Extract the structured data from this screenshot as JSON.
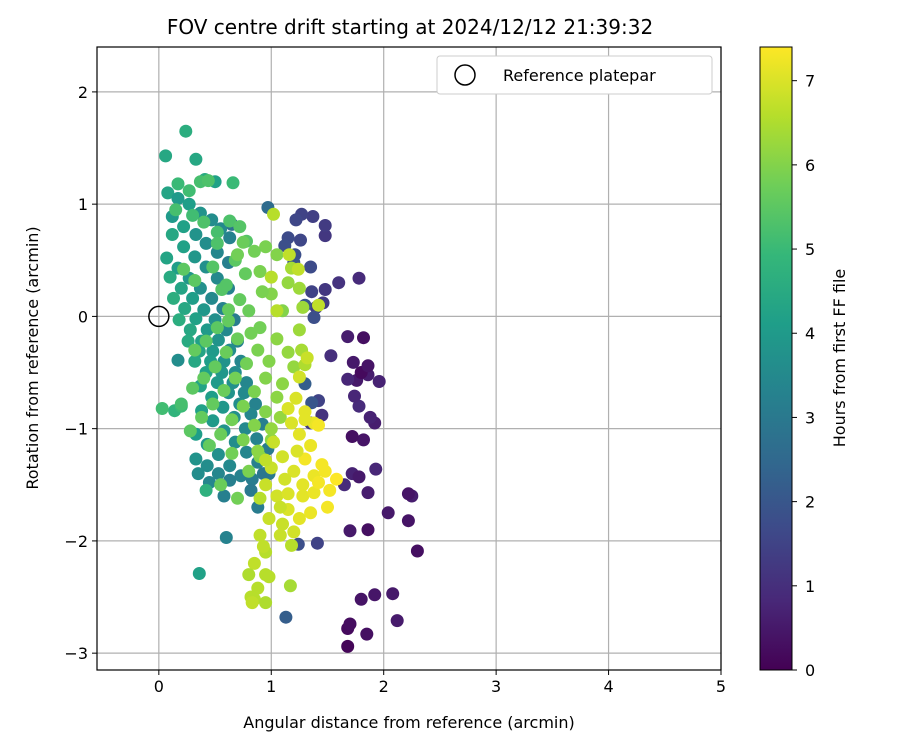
{
  "chart_data": {
    "type": "scatter",
    "title": "FOV centre drift starting at 2024/12/12 21:39:32",
    "xlabel": "Angular distance from reference (arcmin)",
    "ylabel": "Rotation from reference (arcmin)",
    "xlim": [
      -0.55,
      5.0
    ],
    "ylim": [
      -3.15,
      2.4
    ],
    "xticks": [
      0,
      1,
      2,
      3,
      4,
      5
    ],
    "yticks": [
      -3,
      -2,
      -1,
      0,
      1,
      2
    ],
    "grid": true,
    "legend": {
      "label": "Reference platepar",
      "placement": "top-right"
    },
    "reference_point": {
      "x": 0,
      "y": 0
    },
    "colorbar": {
      "label": "Hours from first FF file",
      "range": [
        0,
        7.4
      ],
      "ticks": [
        0,
        1,
        2,
        3,
        4,
        5,
        6,
        7
      ],
      "colormap": "viridis",
      "colors": [
        "#440154",
        "#482878",
        "#3e4989",
        "#31688e",
        "#26828e",
        "#1f9e89",
        "#35b779",
        "#6ece58",
        "#b5de2b",
        "#fde725"
      ]
    },
    "points": [
      [
        1.68,
        -2.94,
        0.1
      ],
      [
        1.68,
        -2.78,
        0.2
      ],
      [
        1.7,
        -2.74,
        0.25
      ],
      [
        1.85,
        -2.83,
        0.3
      ],
      [
        1.8,
        -2.52,
        0.4
      ],
      [
        1.92,
        -2.48,
        0.45
      ],
      [
        2.08,
        -2.47,
        0.5
      ],
      [
        2.12,
        -2.71,
        0.55
      ],
      [
        2.3,
        -2.09,
        0.3
      ],
      [
        2.22,
        -1.82,
        0.4
      ],
      [
        2.04,
        -1.75,
        0.5
      ],
      [
        2.25,
        -1.6,
        0.6
      ],
      [
        2.22,
        -1.58,
        0.4
      ],
      [
        1.86,
        -1.9,
        0.3
      ],
      [
        1.7,
        -1.91,
        0.5
      ],
      [
        1.86,
        -1.57,
        0.6
      ],
      [
        1.93,
        -1.36,
        0.8
      ],
      [
        1.65,
        -1.5,
        0.9
      ],
      [
        1.72,
        -1.4,
        0.7
      ],
      [
        1.78,
        -1.43,
        0.5
      ],
      [
        1.82,
        -1.1,
        0.4
      ],
      [
        1.72,
        -1.07,
        0.3
      ],
      [
        1.92,
        -0.95,
        0.6
      ],
      [
        1.88,
        -0.9,
        0.7
      ],
      [
        1.78,
        -0.8,
        0.9
      ],
      [
        1.74,
        -0.71,
        0.8
      ],
      [
        1.76,
        -0.57,
        0.5
      ],
      [
        1.86,
        -0.52,
        0.6
      ],
      [
        1.96,
        -0.58,
        0.7
      ],
      [
        1.8,
        -0.5,
        0.2
      ],
      [
        1.73,
        -0.41,
        0.5
      ],
      [
        1.86,
        -0.44,
        0.4
      ],
      [
        1.82,
        -0.19,
        0.3
      ],
      [
        1.68,
        -0.18,
        0.6
      ],
      [
        1.68,
        -0.56,
        0.8
      ],
      [
        1.53,
        -0.35,
        1.0
      ],
      [
        1.78,
        0.34,
        0.9
      ],
      [
        1.6,
        0.3,
        1.1
      ],
      [
        1.48,
        0.24,
        1.2
      ],
      [
        1.46,
        0.12,
        1.3
      ],
      [
        1.4,
        0.08,
        1.4
      ],
      [
        1.36,
        0.22,
        1.5
      ],
      [
        1.48,
        0.72,
        1.2
      ],
      [
        1.48,
        0.81,
        1.3
      ],
      [
        1.37,
        0.89,
        1.4
      ],
      [
        1.27,
        0.91,
        1.5
      ],
      [
        1.22,
        0.86,
        1.6
      ],
      [
        1.26,
        0.68,
        1.6
      ],
      [
        1.15,
        0.7,
        1.7
      ],
      [
        1.12,
        0.63,
        1.8
      ],
      [
        1.21,
        0.55,
        1.8
      ],
      [
        1.2,
        0.48,
        1.9
      ],
      [
        1.35,
        0.44,
        1.7
      ],
      [
        1.24,
        -2.03,
        1.8
      ],
      [
        1.41,
        -2.02,
        1.5
      ],
      [
        1.42,
        -0.75,
        1.5
      ],
      [
        1.45,
        -0.88,
        1.1
      ],
      [
        1.35,
        -0.95,
        1.3
      ],
      [
        1.13,
        -2.68,
        2.2
      ],
      [
        0.97,
        0.97,
        2.6
      ],
      [
        0.65,
        0.82,
        2.8
      ],
      [
        1.3,
        0.1,
        2.0
      ],
      [
        1.38,
        -0.01,
        1.8
      ],
      [
        1.3,
        -0.6,
        2.2
      ],
      [
        1.36,
        -0.77,
        2.0
      ],
      [
        0.06,
        1.43,
        4.4
      ],
      [
        0.24,
        1.65,
        4.6
      ],
      [
        0.33,
        1.4,
        4.4
      ],
      [
        0.41,
        1.22,
        4.5
      ],
      [
        0.5,
        1.2,
        4.2
      ],
      [
        0.08,
        1.1,
        4.3
      ],
      [
        0.17,
        1.05,
        4.0
      ],
      [
        0.27,
        1.0,
        4.1
      ],
      [
        0.37,
        0.92,
        3.8
      ],
      [
        0.47,
        0.86,
        3.6
      ],
      [
        0.55,
        0.78,
        3.5
      ],
      [
        0.63,
        0.7,
        3.3
      ],
      [
        0.12,
        0.89,
        4.0
      ],
      [
        0.22,
        0.8,
        4.2
      ],
      [
        0.33,
        0.73,
        3.8
      ],
      [
        0.42,
        0.65,
        3.6
      ],
      [
        0.52,
        0.57,
        3.4
      ],
      [
        0.62,
        0.48,
        3.2
      ],
      [
        0.12,
        0.73,
        4.4
      ],
      [
        0.22,
        0.62,
        4.2
      ],
      [
        0.32,
        0.53,
        3.9
      ],
      [
        0.42,
        0.44,
        3.7
      ],
      [
        0.52,
        0.34,
        3.5
      ],
      [
        0.62,
        0.25,
        3.3
      ],
      [
        0.07,
        0.52,
        4.3
      ],
      [
        0.17,
        0.43,
        4.1
      ],
      [
        0.27,
        0.34,
        3.9
      ],
      [
        0.37,
        0.25,
        3.7
      ],
      [
        0.47,
        0.16,
        3.5
      ],
      [
        0.57,
        0.07,
        3.3
      ],
      [
        0.67,
        -0.03,
        3.1
      ],
      [
        0.1,
        0.35,
        4.5
      ],
      [
        0.2,
        0.25,
        4.3
      ],
      [
        0.3,
        0.16,
        4.1
      ],
      [
        0.4,
        0.06,
        3.9
      ],
      [
        0.5,
        -0.03,
        3.7
      ],
      [
        0.6,
        -0.12,
        3.5
      ],
      [
        0.7,
        -0.22,
        3.3
      ],
      [
        0.13,
        0.16,
        4.6
      ],
      [
        0.23,
        0.07,
        4.4
      ],
      [
        0.33,
        -0.02,
        4.2
      ],
      [
        0.43,
        -0.12,
        4.0
      ],
      [
        0.53,
        -0.21,
        3.8
      ],
      [
        0.63,
        -0.3,
        3.6
      ],
      [
        0.73,
        -0.4,
        3.4
      ],
      [
        0.18,
        -0.03,
        4.6
      ],
      [
        0.28,
        -0.12,
        4.4
      ],
      [
        0.38,
        -0.22,
        4.2
      ],
      [
        0.48,
        -0.31,
        4.0
      ],
      [
        0.58,
        -0.4,
        3.8
      ],
      [
        0.68,
        -0.5,
        3.6
      ],
      [
        0.78,
        -0.59,
        3.4
      ],
      [
        0.26,
        -0.22,
        4.5
      ],
      [
        0.36,
        -0.31,
        4.3
      ],
      [
        0.46,
        -0.4,
        4.1
      ],
      [
        0.56,
        -0.5,
        3.9
      ],
      [
        0.66,
        -0.59,
        3.7
      ],
      [
        0.76,
        -0.68,
        3.5
      ],
      [
        0.86,
        -0.78,
        3.3
      ],
      [
        0.32,
        -0.4,
        4.4
      ],
      [
        0.42,
        -0.5,
        4.2
      ],
      [
        0.52,
        -0.59,
        4.0
      ],
      [
        0.62,
        -0.68,
        3.8
      ],
      [
        0.72,
        -0.78,
        3.6
      ],
      [
        0.82,
        -0.87,
        3.4
      ],
      [
        0.92,
        -0.96,
        3.2
      ],
      [
        0.37,
        -0.62,
        4.3
      ],
      [
        0.47,
        -0.72,
        4.1
      ],
      [
        0.57,
        -0.81,
        3.9
      ],
      [
        0.67,
        -0.9,
        3.7
      ],
      [
        0.77,
        -1.0,
        3.5
      ],
      [
        0.87,
        -1.09,
        3.3
      ],
      [
        0.97,
        -1.18,
        3.1
      ],
      [
        0.38,
        -0.84,
        4.2
      ],
      [
        0.48,
        -0.93,
        4.0
      ],
      [
        0.58,
        -1.02,
        3.8
      ],
      [
        0.68,
        -1.12,
        3.6
      ],
      [
        0.78,
        -1.21,
        3.4
      ],
      [
        0.88,
        -1.3,
        3.2
      ],
      [
        0.98,
        -1.4,
        3.0
      ],
      [
        0.33,
        -1.05,
        4.1
      ],
      [
        0.43,
        -1.14,
        3.9
      ],
      [
        0.53,
        -1.23,
        3.7
      ],
      [
        0.63,
        -1.33,
        3.5
      ],
      [
        0.73,
        -1.42,
        3.3
      ],
      [
        0.83,
        -1.45,
        3.1
      ],
      [
        0.93,
        -1.4,
        2.9
      ],
      [
        0.33,
        -1.27,
        3.8
      ],
      [
        0.43,
        -1.33,
        3.6
      ],
      [
        0.53,
        -1.4,
        3.4
      ],
      [
        0.63,
        -1.46,
        3.2
      ],
      [
        0.35,
        -1.4,
        3.6
      ],
      [
        0.45,
        -1.48,
        3.4
      ],
      [
        0.58,
        -1.6,
        3.2
      ],
      [
        0.82,
        -1.55,
        3.0
      ],
      [
        0.88,
        -1.7,
        3.1
      ],
      [
        0.6,
        -1.97,
        3.3
      ],
      [
        0.36,
        -2.29,
        4.2
      ],
      [
        0.42,
        -1.55,
        4.7
      ],
      [
        0.14,
        -0.84,
        4.8
      ],
      [
        0.2,
        -0.8,
        5.0
      ],
      [
        0.17,
        -0.39,
        3.6
      ],
      [
        0.2,
        -0.78,
        5.2
      ],
      [
        0.03,
        -0.82,
        5.1
      ],
      [
        0.17,
        1.18,
        5.0
      ],
      [
        0.27,
        1.12,
        5.1
      ],
      [
        0.37,
        1.2,
        5.2
      ],
      [
        0.44,
        1.21,
        5.3
      ],
      [
        0.66,
        1.19,
        5.0
      ],
      [
        0.15,
        0.95,
        5.2
      ],
      [
        0.3,
        0.9,
        5.1
      ],
      [
        0.4,
        0.84,
        5.3
      ],
      [
        0.52,
        0.75,
        5.2
      ],
      [
        0.63,
        0.85,
        5.3
      ],
      [
        0.72,
        0.8,
        5.4
      ],
      [
        0.78,
        0.67,
        5.4
      ],
      [
        0.22,
        0.42,
        5.5
      ],
      [
        0.32,
        0.32,
        5.5
      ],
      [
        0.48,
        0.44,
        5.4
      ],
      [
        0.56,
        0.24,
        5.4
      ],
      [
        0.68,
        0.5,
        5.5
      ],
      [
        0.77,
        0.38,
        5.6
      ],
      [
        0.72,
        0.15,
        5.6
      ],
      [
        0.62,
        0.06,
        5.6
      ],
      [
        0.52,
        -0.1,
        5.5
      ],
      [
        0.42,
        -0.22,
        5.5
      ],
      [
        0.32,
        -0.3,
        5.6
      ],
      [
        0.8,
        0.05,
        5.7
      ],
      [
        0.9,
        -0.1,
        5.8
      ],
      [
        0.7,
        -0.2,
        5.7
      ],
      [
        0.6,
        -0.32,
        5.7
      ],
      [
        0.5,
        -0.45,
        5.6
      ],
      [
        0.4,
        -0.55,
        5.6
      ],
      [
        0.3,
        -0.64,
        5.5
      ],
      [
        0.88,
        -0.3,
        5.9
      ],
      [
        0.78,
        -0.42,
        5.8
      ],
      [
        0.68,
        -0.55,
        5.8
      ],
      [
        0.58,
        -0.66,
        5.7
      ],
      [
        0.48,
        -0.78,
        5.6
      ],
      [
        0.38,
        -0.9,
        5.6
      ],
      [
        0.28,
        -1.02,
        5.5
      ],
      [
        0.95,
        -0.55,
        6.0
      ],
      [
        0.85,
        -0.67,
        5.9
      ],
      [
        0.75,
        -0.8,
        5.9
      ],
      [
        0.65,
        -0.92,
        5.8
      ],
      [
        0.55,
        -1.05,
        5.7
      ],
      [
        0.45,
        -1.15,
        5.6
      ],
      [
        1.05,
        -0.72,
        6.1
      ],
      [
        0.95,
        -0.85,
        6.0
      ],
      [
        0.85,
        -0.97,
        6.0
      ],
      [
        0.75,
        -1.1,
        5.9
      ],
      [
        0.65,
        -1.22,
        5.8
      ],
      [
        1.0,
        -1.1,
        6.1
      ],
      [
        0.9,
        -1.25,
        6.0
      ],
      [
        0.8,
        -1.38,
        5.9
      ],
      [
        0.55,
        -1.5,
        5.7
      ],
      [
        0.7,
        -1.62,
        5.8
      ],
      [
        0.9,
        0.4,
        5.9
      ],
      [
        1.0,
        0.2,
        6.0
      ],
      [
        1.1,
        0.05,
        6.0
      ],
      [
        1.05,
        -0.2,
        6.1
      ],
      [
        1.15,
        -0.32,
        6.2
      ],
      [
        1.2,
        -0.45,
        6.2
      ],
      [
        1.1,
        -0.6,
        6.1
      ],
      [
        0.95,
        0.62,
        5.9
      ],
      [
        1.05,
        0.55,
        6.0
      ],
      [
        0.85,
        0.58,
        5.8
      ],
      [
        0.75,
        0.66,
        5.7
      ],
      [
        1.15,
        0.3,
        6.2
      ],
      [
        1.25,
        0.25,
        6.3
      ],
      [
        1.28,
        0.08,
        6.3
      ],
      [
        1.25,
        -0.12,
        6.3
      ],
      [
        1.18,
        0.43,
        6.4
      ],
      [
        1.27,
        -0.3,
        6.4
      ],
      [
        1.3,
        -0.43,
        6.5
      ],
      [
        1.08,
        -0.9,
        6.2
      ],
      [
        1.0,
        -1.0,
        6.2
      ],
      [
        0.88,
        -1.2,
        6.1
      ],
      [
        0.7,
        0.55,
        5.8
      ],
      [
        0.92,
        0.22,
        5.9
      ],
      [
        0.82,
        -0.15,
        5.8
      ],
      [
        0.98,
        -0.4,
        6.0
      ],
      [
        0.62,
        -0.04,
        5.6
      ],
      [
        0.52,
        0.65,
        5.3
      ],
      [
        0.6,
        0.28,
        5.4
      ],
      [
        1.02,
        0.91,
        6.6
      ],
      [
        1.16,
        0.55,
        6.7
      ],
      [
        1.24,
        0.42,
        6.7
      ],
      [
        1.0,
        0.35,
        6.6
      ],
      [
        1.05,
        0.05,
        6.6
      ],
      [
        1.42,
        0.1,
        6.7
      ],
      [
        1.32,
        -0.37,
        6.8
      ],
      [
        1.25,
        -0.54,
        6.9
      ],
      [
        1.22,
        -0.73,
        7.0
      ],
      [
        1.15,
        -0.82,
        7.0
      ],
      [
        1.3,
        -0.85,
        7.1
      ],
      [
        1.38,
        -0.95,
        7.2
      ],
      [
        1.42,
        -0.97,
        7.3
      ],
      [
        1.25,
        -1.05,
        7.1
      ],
      [
        1.35,
        -1.15,
        7.2
      ],
      [
        1.3,
        -1.27,
        7.3
      ],
      [
        1.45,
        -1.32,
        7.3
      ],
      [
        1.38,
        -1.42,
        7.2
      ],
      [
        1.28,
        -1.5,
        7.1
      ],
      [
        1.2,
        -1.38,
        7.0
      ],
      [
        1.1,
        -1.25,
        6.9
      ],
      [
        1.0,
        -1.35,
        6.8
      ],
      [
        0.95,
        -1.5,
        6.8
      ],
      [
        1.05,
        -1.6,
        6.9
      ],
      [
        1.15,
        -1.72,
        7.0
      ],
      [
        1.25,
        -1.8,
        7.1
      ],
      [
        1.35,
        -1.75,
        7.2
      ],
      [
        1.5,
        -1.7,
        7.3
      ],
      [
        1.52,
        -1.55,
        7.3
      ],
      [
        1.58,
        -1.45,
        7.4
      ],
      [
        1.48,
        -1.38,
        7.3
      ],
      [
        1.2,
        -1.92,
        6.9
      ],
      [
        1.1,
        -1.85,
        6.8
      ],
      [
        0.98,
        -1.8,
        6.8
      ],
      [
        0.9,
        -1.95,
        6.7
      ],
      [
        0.95,
        -2.1,
        6.6
      ],
      [
        0.85,
        -2.2,
        6.7
      ],
      [
        0.95,
        -2.3,
        6.6
      ],
      [
        0.88,
        -2.42,
        6.6
      ],
      [
        0.8,
        -2.3,
        6.5
      ],
      [
        0.85,
        -2.52,
        6.6
      ],
      [
        0.95,
        -2.55,
        6.5
      ],
      [
        0.82,
        -2.5,
        6.6
      ],
      [
        1.18,
        -2.04,
        6.6
      ],
      [
        1.17,
        -2.4,
        6.4
      ],
      [
        0.93,
        -2.05,
        6.7
      ],
      [
        1.08,
        -1.95,
        6.8
      ],
      [
        1.15,
        -1.58,
        7.0
      ],
      [
        1.28,
        -1.6,
        7.1
      ],
      [
        1.38,
        -1.57,
        7.2
      ],
      [
        1.42,
        -1.48,
        7.3
      ],
      [
        1.02,
        -1.12,
        6.8
      ],
      [
        0.95,
        -1.28,
        6.7
      ],
      [
        1.3,
        -0.92,
        7.1
      ],
      [
        1.23,
        -1.2,
        7.0
      ],
      [
        1.18,
        -0.95,
        7.0
      ],
      [
        1.12,
        -1.45,
        6.9
      ],
      [
        1.08,
        -1.7,
        6.8
      ],
      [
        0.9,
        -1.62,
        6.6
      ],
      [
        0.98,
        -2.32,
        6.6
      ],
      [
        0.83,
        -2.55,
        6.7
      ]
    ]
  }
}
